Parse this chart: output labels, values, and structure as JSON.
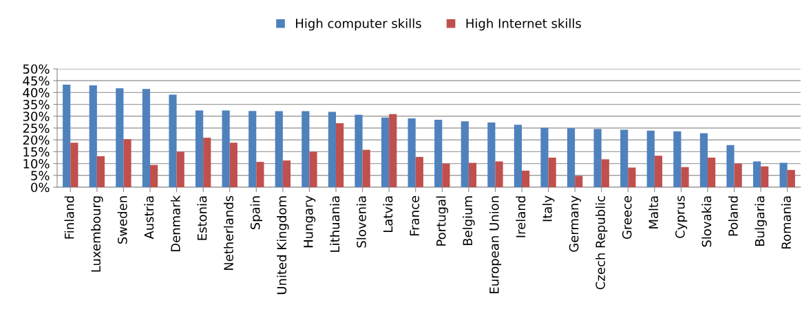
{
  "chart_data": {
    "type": "bar",
    "categories": [
      "Finland",
      "Luxembourg",
      "Sweden",
      "Austria",
      "Denmark",
      "Estonia",
      "Netherlands",
      "Spain",
      "United Kingdom",
      "Hungary",
      "Lithuania",
      "Slovenia",
      "Latvia",
      "France",
      "Portugal",
      "Belgium",
      "European Union",
      "Ireland",
      "Italy",
      "Germany",
      "Czech Republic",
      "Greece",
      "Malta",
      "Cyprus",
      "Slovakia",
      "Poland",
      "Bulgaria",
      "Romania"
    ],
    "series": [
      {
        "name": "High computer skills",
        "color": "#4f81bd",
        "values": [
          43.3,
          43.0,
          41.8,
          41.5,
          39.1,
          32.4,
          32.4,
          32.2,
          32.1,
          32.1,
          31.8,
          30.6,
          29.4,
          29.1,
          28.5,
          27.8,
          27.3,
          26.4,
          25.1,
          24.9,
          24.6,
          24.3,
          23.9,
          23.6,
          22.8,
          17.8,
          10.9,
          10.3
        ]
      },
      {
        "name": "High Internet skills",
        "color": "#c0504d",
        "values": [
          18.8,
          13.1,
          20.3,
          9.4,
          15.0,
          20.9,
          18.8,
          10.7,
          11.3,
          15.0,
          27.0,
          15.8,
          30.9,
          12.8,
          10.0,
          10.3,
          10.9,
          7.0,
          12.5,
          4.8,
          11.8,
          8.3,
          13.3,
          8.5,
          12.5,
          10.0,
          8.8,
          7.3
        ]
      }
    ],
    "ylim": [
      0,
      50
    ],
    "yticks": [
      {
        "value": 0,
        "label": "0%"
      },
      {
        "value": 5,
        "label": "5%"
      },
      {
        "value": 10,
        "label": "10%"
      },
      {
        "value": 15,
        "label": "15%"
      },
      {
        "value": 20,
        "label": "20%"
      },
      {
        "value": 25,
        "label": "25%"
      },
      {
        "value": 30,
        "label": "30%"
      },
      {
        "value": 35,
        "label": "35%"
      },
      {
        "value": 40,
        "label": "40%"
      },
      {
        "value": 45,
        "label": "45%"
      },
      {
        "value": 50,
        "label": "50%"
      }
    ],
    "grid": "y",
    "legend": "top"
  }
}
